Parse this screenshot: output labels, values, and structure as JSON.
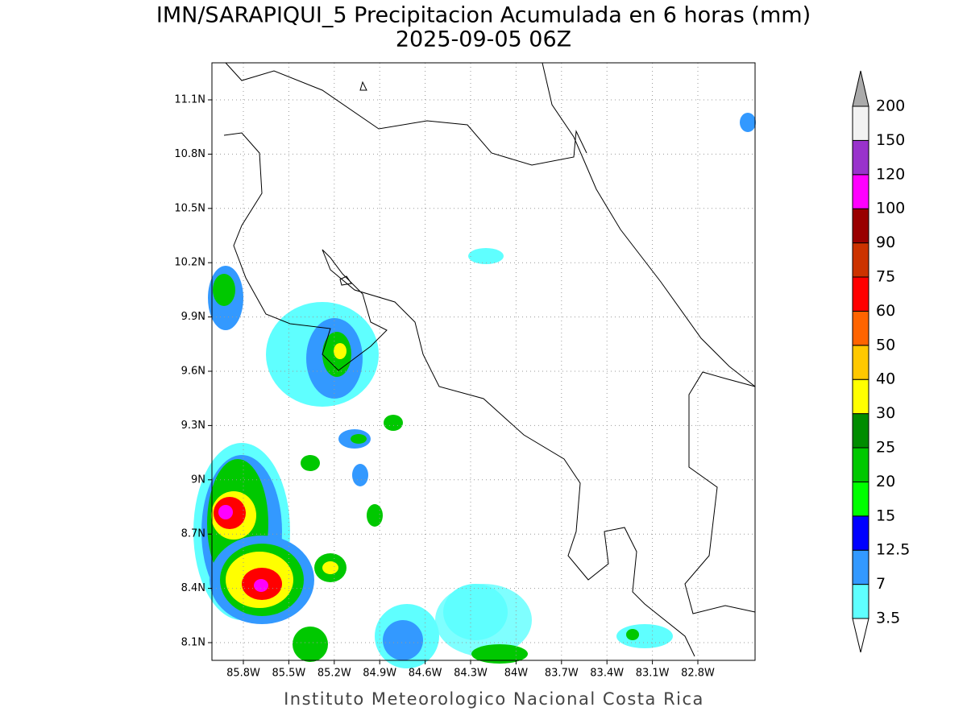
{
  "map": {
    "title": "IMN/SARAPIQUI_5 Precipitacion Acumulada en 6 horas (mm)",
    "subtitle": "2025-09-05 06Z",
    "x_labels": [
      "85.8W",
      "85.5W",
      "85.2W",
      "84.9W",
      "84.6W",
      "84.3W",
      "84W",
      "83.7W",
      "83.4W",
      "83.1W",
      "82.8W"
    ],
    "y_labels": [
      "11.1N",
      "10.8N",
      "10.5N",
      "10.2N",
      "9.9N",
      "9.6N",
      "9.3N",
      "9N",
      "8.7N",
      "8.4N",
      "8.1N"
    ],
    "credit": "Instituto Meteorologico Nacional Costa Rica",
    "colorbar": {
      "levels": [
        3.5,
        7,
        12.5,
        15,
        20,
        25,
        30,
        40,
        50,
        60,
        75,
        90,
        100,
        120,
        150,
        200
      ],
      "colors": [
        "#5fffff",
        "#3399ff",
        "#0000ff",
        "#00ff00",
        "#00c800",
        "#008c00",
        "#ffff00",
        "#ffc800",
        "#ff6400",
        "#ff0000",
        "#cc3300",
        "#990000",
        "#ff00ff",
        "#9933cc",
        "#f2f2f2"
      ],
      "under_color": "#ffffff",
      "over_color": "#aaaaaa"
    }
  }
}
